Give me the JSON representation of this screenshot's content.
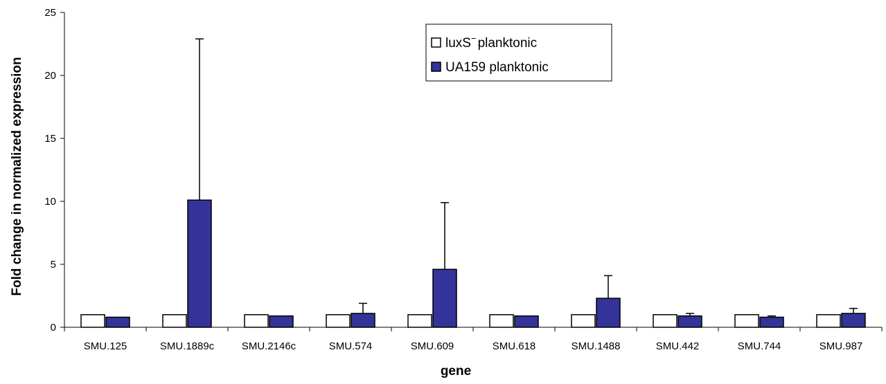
{
  "chart_data": {
    "type": "bar",
    "xlabel": "gene",
    "ylabel": "Fold change in normalized expression",
    "ylim": [
      0,
      25
    ],
    "yticks": [
      0,
      5,
      10,
      15,
      20,
      25
    ],
    "grid": false,
    "legend_position": "top-center",
    "categories": [
      "SMU.125",
      "SMU.1889c",
      "SMU.2146c",
      "SMU.574",
      "SMU.609",
      "SMU.618",
      "SMU.1488",
      "SMU.442",
      "SMU.744",
      "SMU.987"
    ],
    "series": [
      {
        "name": "luxS−planktonic",
        "legend_main": "luxS",
        "legend_sup": "−",
        "legend_suffix": "planktonic",
        "color": "#ffffff",
        "values": [
          1,
          1,
          1,
          1,
          1,
          1,
          1,
          1,
          1,
          1
        ],
        "error": [
          0,
          0,
          0,
          0,
          0,
          0,
          0,
          0,
          0,
          0
        ]
      },
      {
        "name": "UA159 planktonic",
        "color": "#33339a",
        "values": [
          0.8,
          10.1,
          0.9,
          1.1,
          4.6,
          0.9,
          2.3,
          0.9,
          0.8,
          1.1
        ],
        "error": [
          0,
          12.8,
          0,
          0.8,
          5.3,
          0,
          1.8,
          0.2,
          0.1,
          0.4
        ]
      }
    ]
  }
}
